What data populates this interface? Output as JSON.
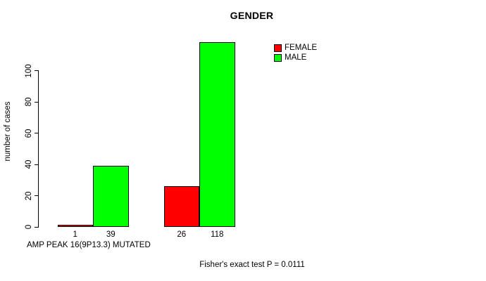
{
  "chart_data": {
    "type": "bar",
    "title": "GENDER",
    "ylabel": "number of cases",
    "xlabel": "AMP PEAK 16(9P13.3) MUTATED",
    "annotation": "Fisher's exact test P = 0.0111",
    "yticks": [
      0,
      20,
      40,
      60,
      80,
      100
    ],
    "ytick_range": [
      0,
      100
    ],
    "grid": false,
    "legend_position": "top-right-inside",
    "bars_show_value_labels": true,
    "series": [
      {
        "name": "FEMALE",
        "color": "#ff0000",
        "values": [
          1,
          26
        ]
      },
      {
        "name": "MALE",
        "color": "#00ff00",
        "values": [
          39,
          118
        ]
      }
    ],
    "groups": [
      {
        "female": 1,
        "male": 39
      },
      {
        "female": 26,
        "male": 118
      }
    ]
  }
}
